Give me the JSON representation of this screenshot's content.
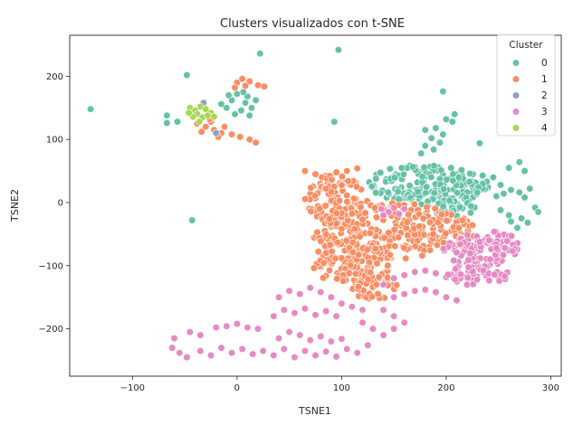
{
  "chart_data": {
    "type": "scatter",
    "title": "Clusters visualizados con t-SNE",
    "xlabel": "TSNE1",
    "ylabel": "TSNE2",
    "xlim": [
      -160,
      310
    ],
    "ylim": [
      -275,
      265
    ],
    "xticks": [
      -100,
      0,
      100,
      200,
      300
    ],
    "yticks": [
      -200,
      -100,
      0,
      100,
      200
    ],
    "xtick_labels": [
      "−100",
      "0",
      "100",
      "200",
      "300"
    ],
    "ytick_labels": [
      "−200",
      "−100",
      "0",
      "100",
      "200"
    ],
    "grid": false,
    "legend": {
      "title": "Cluster",
      "placement": "top-right",
      "entries": [
        "0",
        "1",
        "2",
        "3",
        "4"
      ]
    },
    "series": [
      {
        "name": "0",
        "color": "#66c2a5",
        "points": [
          [
            -140,
            148
          ],
          [
            -48,
            202
          ],
          [
            22,
            236
          ],
          [
            97,
            242
          ],
          [
            -67,
            138
          ],
          [
            -67,
            126
          ],
          [
            -57,
            128
          ],
          [
            -43,
            -28
          ],
          [
            93,
            128
          ],
          [
            197,
            176
          ],
          [
            232,
            94
          ],
          [
            0,
            172
          ],
          [
            10,
            168
          ],
          [
            -5,
            162
          ],
          [
            8,
            158
          ],
          [
            14,
            150
          ],
          [
            4,
            146
          ],
          [
            -10,
            150
          ],
          [
            18,
            162
          ],
          [
            -2,
            140
          ],
          [
            12,
            138
          ],
          [
            -15,
            156
          ],
          [
            6,
            175
          ],
          [
            -8,
            170
          ],
          [
            180,
            115
          ],
          [
            190,
            118
          ],
          [
            197,
            108
          ],
          [
            186,
            102
          ],
          [
            194,
            95
          ],
          [
            180,
            90
          ],
          [
            188,
            84
          ],
          [
            176,
            78
          ],
          [
            200,
            132
          ],
          [
            208,
            140
          ],
          [
            206,
            128
          ],
          [
            270,
            64
          ],
          [
            260,
            55
          ],
          [
            275,
            50
          ],
          [
            245,
            40
          ],
          [
            252,
            28
          ],
          [
            262,
            20
          ],
          [
            255,
            14
          ],
          [
            270,
            16
          ],
          [
            280,
            22
          ],
          [
            248,
            10
          ],
          [
            240,
            24
          ],
          [
            275,
            8
          ],
          [
            285,
            -8
          ],
          [
            288,
            -15
          ],
          [
            272,
            -25
          ],
          [
            262,
            -30
          ],
          [
            278,
            -32
          ],
          [
            268,
            -40
          ],
          [
            260,
            -20
          ],
          [
            252,
            -12
          ]
        ],
        "clusters": [
          {
            "cx": 180,
            "cy": 30,
            "rx": 55,
            "ry": 30,
            "n": 130
          },
          {
            "cx": 215,
            "cy": 25,
            "rx": 25,
            "ry": 30,
            "n": 45
          },
          {
            "cx": 200,
            "cy": -10,
            "rx": 30,
            "ry": 15,
            "n": 30
          }
        ]
      },
      {
        "name": "1",
        "color": "#fc8d62",
        "points": [
          [
            0,
            190
          ],
          [
            5,
            196
          ],
          [
            12,
            192
          ],
          [
            20,
            186
          ],
          [
            26,
            184
          ],
          [
            -2,
            182
          ],
          [
            8,
            185
          ],
          [
            -38,
            125
          ],
          [
            -30,
            120
          ],
          [
            -22,
            115
          ],
          [
            -15,
            110
          ],
          [
            -5,
            108
          ],
          [
            3,
            104
          ],
          [
            12,
            100
          ],
          [
            18,
            95
          ],
          [
            -25,
            128
          ],
          [
            -12,
            120
          ],
          [
            -34,
            112
          ],
          [
            -18,
            104
          ],
          [
            -26,
            132
          ],
          [
            65,
            50
          ],
          [
            75,
            45
          ],
          [
            85,
            42
          ],
          [
            95,
            48
          ],
          [
            105,
            50
          ],
          [
            115,
            54
          ]
        ],
        "clusters": [
          {
            "cx": 95,
            "cy": 5,
            "rx": 30,
            "ry": 40,
            "n": 100
          },
          {
            "cx": 150,
            "cy": -45,
            "rx": 80,
            "ry": 45,
            "n": 280
          },
          {
            "cx": 110,
            "cy": -95,
            "rx": 40,
            "ry": 35,
            "n": 120
          },
          {
            "cx": 130,
            "cy": -130,
            "rx": 25,
            "ry": 25,
            "n": 40
          }
        ]
      },
      {
        "name": "2",
        "color": "#8da0cb",
        "points": [
          [
            -32,
            158
          ],
          [
            -20,
            110
          ]
        ]
      },
      {
        "name": "3",
        "color": "#e78ac3",
        "points": [
          [
            -62,
            -230
          ],
          [
            -55,
            -238
          ],
          [
            -48,
            -245
          ],
          [
            -35,
            -235
          ],
          [
            -25,
            -242
          ],
          [
            -15,
            -230
          ],
          [
            -5,
            -238
          ],
          [
            5,
            -232
          ],
          [
            15,
            -240
          ],
          [
            25,
            -235
          ],
          [
            35,
            -242
          ],
          [
            45,
            -232
          ],
          [
            55,
            -245
          ],
          [
            65,
            -235
          ],
          [
            75,
            -242
          ],
          [
            85,
            -236
          ],
          [
            95,
            -244
          ],
          [
            105,
            -232
          ],
          [
            115,
            -238
          ],
          [
            125,
            -226
          ],
          [
            -45,
            -205
          ],
          [
            -35,
            -210
          ],
          [
            -20,
            -198
          ],
          [
            -10,
            -196
          ],
          [
            0,
            -192
          ],
          [
            10,
            -198
          ],
          [
            20,
            -200
          ],
          [
            -60,
            -215
          ],
          [
            40,
            -215
          ],
          [
            50,
            -205
          ],
          [
            60,
            -210
          ],
          [
            70,
            -218
          ],
          [
            80,
            -212
          ],
          [
            90,
            -220
          ],
          [
            100,
            -216
          ],
          [
            35,
            -180
          ],
          [
            45,
            -170
          ],
          [
            55,
            -175
          ],
          [
            65,
            -168
          ],
          [
            75,
            -178
          ],
          [
            85,
            -172
          ],
          [
            95,
            -180
          ],
          [
            40,
            -150
          ],
          [
            50,
            -140
          ],
          [
            60,
            -145
          ],
          [
            70,
            -135
          ],
          [
            80,
            -142
          ],
          [
            90,
            -150
          ],
          [
            100,
            -160
          ],
          [
            110,
            -165
          ],
          [
            120,
            -170
          ],
          [
            140,
            -130
          ],
          [
            150,
            -120
          ],
          [
            160,
            -115
          ],
          [
            170,
            -110
          ],
          [
            180,
            -108
          ],
          [
            190,
            -112
          ],
          [
            200,
            -118
          ],
          [
            210,
            -125
          ],
          [
            220,
            -130
          ],
          [
            150,
            -150
          ],
          [
            160,
            -145
          ],
          [
            170,
            -140
          ],
          [
            180,
            -138
          ],
          [
            190,
            -142
          ],
          [
            200,
            -150
          ],
          [
            210,
            -155
          ],
          [
            140,
            -170
          ],
          [
            150,
            -180
          ],
          [
            160,
            -190
          ],
          [
            150,
            -200
          ],
          [
            140,
            -210
          ],
          [
            130,
            -200
          ],
          [
            120,
            -190
          ],
          [
            138,
            -10
          ],
          [
            145,
            -15
          ],
          [
            150,
            -8
          ],
          [
            140,
            -20
          ],
          [
            155,
            -18
          ],
          [
            160,
            -10
          ]
        ],
        "clusters": [
          {
            "cx": 225,
            "cy": -85,
            "rx": 30,
            "ry": 35,
            "n": 80
          },
          {
            "cx": 250,
            "cy": -70,
            "rx": 20,
            "ry": 25,
            "n": 40
          },
          {
            "cx": 230,
            "cy": -115,
            "rx": 30,
            "ry": 15,
            "n": 35
          }
        ]
      },
      {
        "name": "4",
        "color": "#a6d854",
        "points": [
          [
            -45,
            150
          ],
          [
            -40,
            146
          ],
          [
            -35,
            152
          ],
          [
            -30,
            148
          ],
          [
            -25,
            142
          ],
          [
            -38,
            140
          ],
          [
            -42,
            136
          ],
          [
            -33,
            135
          ],
          [
            -28,
            138
          ],
          [
            -22,
            136
          ],
          [
            -36,
            128
          ],
          [
            -46,
            142
          ]
        ]
      }
    ]
  }
}
